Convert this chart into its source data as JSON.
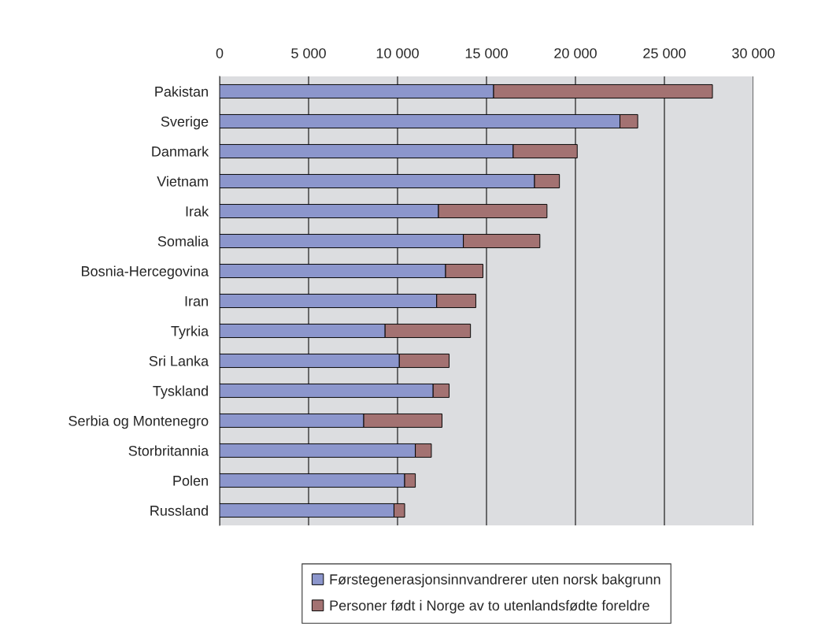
{
  "chart_data": {
    "type": "bar",
    "orientation": "horizontal",
    "stacked": true,
    "categories": [
      "Pakistan",
      "Sverige",
      "Danmark",
      "Vietnam",
      "Irak",
      "Somalia",
      "Bosnia-Hercegovina",
      "Iran",
      "Tyrkia",
      "Sri Lanka",
      "Tyskland",
      "Serbia og Montenegro",
      "Storbritannia",
      "Polen",
      "Russland"
    ],
    "series": [
      {
        "name": "Førstegenerasjonsinnvandrerer uten norsk bakgrunn",
        "color": "#8c96cc",
        "values": [
          15400,
          22500,
          16500,
          17700,
          12300,
          13700,
          12700,
          12200,
          9300,
          10100,
          12000,
          8100,
          11000,
          10400,
          9800
        ]
      },
      {
        "name": "Personer født i Norge av to utenlandsfødte foreldre",
        "color": "#a37272",
        "values": [
          12300,
          1000,
          3600,
          1400,
          6100,
          4300,
          2100,
          2200,
          4800,
          2800,
          900,
          4400,
          900,
          600,
          600
        ]
      }
    ],
    "xlim": [
      0,
      30000
    ],
    "xticks": [
      0,
      {
        "value": 5000,
        "label": "5 000"
      },
      {
        "value": 10000,
        "label": "10 000"
      },
      {
        "value": 15000,
        "label": "15 000"
      },
      {
        "value": 20000,
        "label": "20 000"
      },
      {
        "value": 25000,
        "label": "25 000"
      },
      {
        "value": 30000,
        "label": "30 000"
      }
    ],
    "grid": "x",
    "legend": "bottom"
  }
}
